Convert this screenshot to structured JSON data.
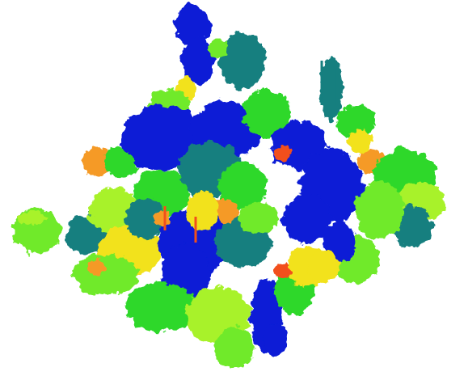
{
  "image": {
    "background_color": "#ffffff",
    "description_colors": {
      "blue": "#0a1fd6",
      "teal": "#157f7f",
      "green": "#2fd82a",
      "lime": "#a8f22a",
      "light_green": "#70ea2a",
      "yellow": "#f2e21a",
      "orange": "#f59a28",
      "red_orange": "#f2501a"
    }
  }
}
